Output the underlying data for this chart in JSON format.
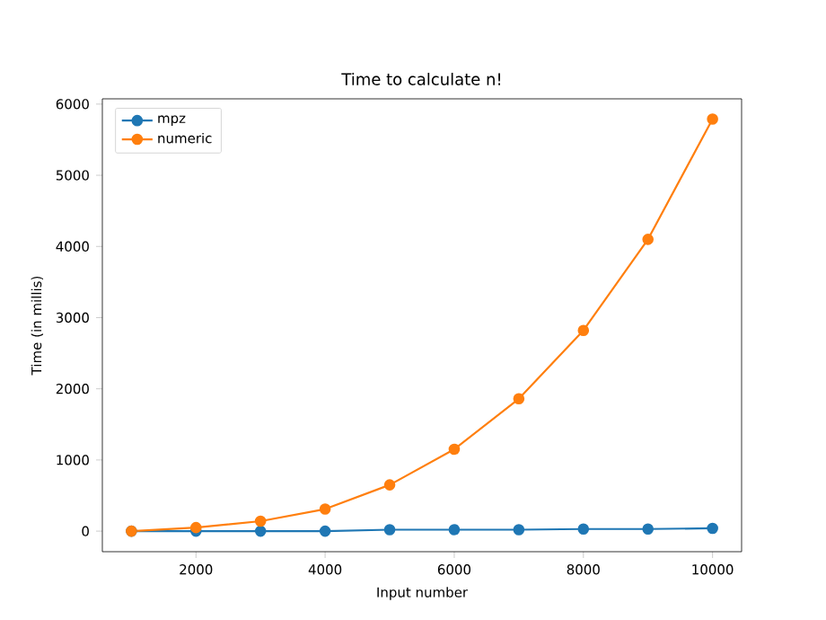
{
  "chart_data": {
    "type": "line",
    "title": "Time to calculate n!",
    "xlabel": "Input number",
    "ylabel": "Time (in millis)",
    "x": [
      1000,
      2000,
      3000,
      4000,
      5000,
      6000,
      7000,
      8000,
      9000,
      10000
    ],
    "series": [
      {
        "name": "mpz",
        "color": "#1f77b4",
        "values": [
          0,
          0,
          0,
          0,
          20,
          20,
          20,
          30,
          30,
          40
        ]
      },
      {
        "name": "numeric",
        "color": "#ff7f0e",
        "values": [
          0,
          50,
          140,
          310,
          650,
          1150,
          1860,
          2820,
          4100,
          5790
        ]
      }
    ],
    "xlim": [
      550,
      10450
    ],
    "ylim": [
      -289,
      6074
    ],
    "xticks": [
      2000,
      4000,
      6000,
      8000,
      10000
    ],
    "yticks": [
      0,
      1000,
      2000,
      3000,
      4000,
      5000,
      6000
    ],
    "marker": "circle",
    "legend": "top left",
    "grid": false
  }
}
